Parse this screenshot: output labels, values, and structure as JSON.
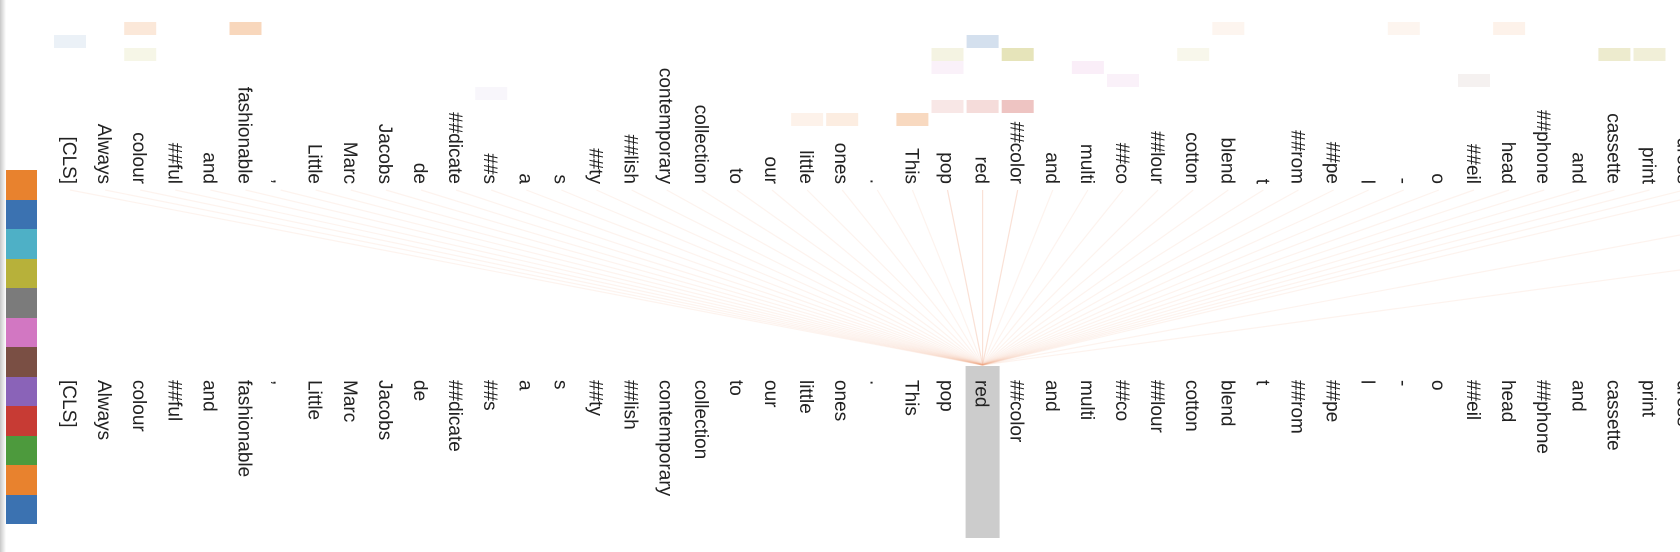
{
  "tokens": [
    "[CLS]",
    "Always",
    "colour",
    "##ful",
    "and",
    "fashionable",
    ",",
    "Little",
    "Marc",
    "Jacobs",
    "de",
    "##dicate",
    "##s",
    "a",
    "s",
    "##ty",
    "##lish",
    "contemporary",
    "collection",
    "to",
    "our",
    "little",
    "ones",
    ".",
    "This",
    "pop",
    "red",
    "##color",
    "and",
    "multi",
    "##co",
    "##lour",
    "cotton",
    "blend",
    "t",
    "##rom",
    "##pe",
    "l",
    "-",
    "o",
    "##eil",
    "head",
    "##phone",
    "and",
    "cassette",
    "print",
    "dress"
  ],
  "selected_token_index": 26,
  "head_colors": [
    "#e8822e",
    "#3b72b1",
    "#4eb0c6",
    "#b7b13a",
    "#7b7b7b",
    "#d277c2",
    "#7a4f44",
    "#8a63b8",
    "#c73b34",
    "#4d9a3d",
    "#e8822e",
    "#3b72b1"
  ],
  "colors": {
    "selection": "#cccccc",
    "line": "#f0a98a",
    "text": "#222222"
  }
}
